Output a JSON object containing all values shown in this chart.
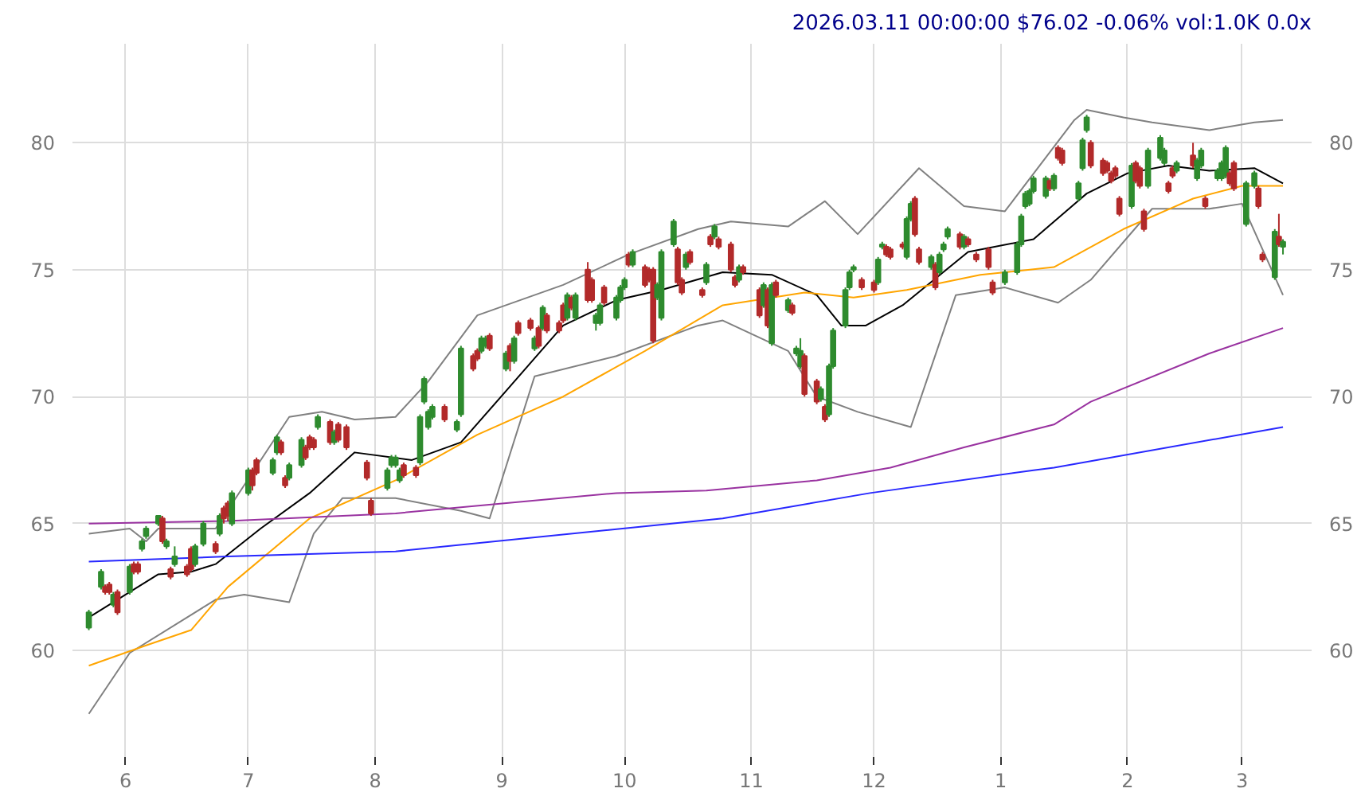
{
  "chart_data": {
    "type": "candlestick",
    "title": "2026.03.11 00:00:00 $76.02 -0.06% vol:1.0K 0.0x",
    "colors": [
      "#2e8b2e",
      "#2e8b2e",
      "#b22a2a",
      "#b22a2a",
      "#2e8b2e",
      "#b22a2a",
      "#2e8b2e",
      "#b22a2a",
      "#b22a2a",
      "#2e8b2e",
      "#2e8b2e",
      "#2e8b2e",
      "#b22a2a",
      "#2e8b2e",
      "#b22a2a",
      "#2e8b2e",
      "#b22a2a",
      "#b22a2a",
      "#2e8b2e",
      "#2e8b2e",
      "#b22a2a",
      "#2e8b2e",
      "#b22a2a",
      "#b22a2a",
      "#2e8b2e",
      "#2e8b2e",
      "#b22a2a",
      "#b22a2a",
      "#2e8b2e",
      "#2e8b2e",
      "#b22a2a",
      "#b22a2a",
      "#2e8b2e",
      "#2e8b2e",
      "#b22a2a",
      "#b22a2a",
      "#b22a2a",
      "#2e8b2e",
      "#b22a2a",
      "#2e8b2e",
      "#b22a2a",
      "#b22a2a",
      "#b22a2a",
      "#b22a2a",
      "#2e8b2e",
      "#2e8b2e",
      "#2e8b2e",
      "#2e8b2e",
      "#b22a2a",
      "#b22a2a",
      "#2e8b2e",
      "#2e8b2e",
      "#2e8b2e",
      "#2e8b2e",
      "#b22a2a",
      "#2e8b2e",
      "#2e8b2e",
      "#b22a2a",
      "#b22a2a",
      "#2e8b2e",
      "#2e8b2e",
      "#b22a2a",
      "#2e8b2e",
      "#b22a2a",
      "#2e8b2e",
      "#b22a2a",
      "#b22a2a",
      "#2e8b2e",
      "#b22a2a",
      "#2e8b2e",
      "#b22a2a",
      "#b22a2a",
      "#b22a2a",
      "#2e8b2e",
      "#b22a2a",
      "#2e8b2e",
      "#b22a2a",
      "#b22a2a",
      "#2e8b2e",
      "#2e8b2e",
      "#b22a2a",
      "#2e8b2e",
      "#2e8b2e",
      "#2e8b2e",
      "#b22a2a",
      "#2e8b2e",
      "#b22a2a",
      "#b22a2a",
      "#b22a2a",
      "#2e8b2e",
      "#2e8b2e",
      "#2e8b2e",
      "#b22a2a",
      "#b22a2a",
      "#2e8b2e",
      "#b22a2a",
      "#b22a2a",
      "#2e8b2e",
      "#b22a2a",
      "#2e8b2e",
      "#b22a2a",
      "#b22a2a",
      "#b22a2a",
      "#2e8b2e",
      "#b22a2a",
      "#b22a2a",
      "#2e8b2e",
      "#b22a2a",
      "#2e8b2e",
      "#b22a2a",
      "#2e8b2e",
      "#b22a2a",
      "#2e8b2e",
      "#2e8b2e",
      "#b22a2a",
      "#b22a2a",
      "#2e8b2e",
      "#b22a2a",
      "#2e8b2e",
      "#2e8b2e",
      "#2e8b2e",
      "#2e8b2e",
      "#2e8b2e",
      "#b22a2a",
      "#b22a2a",
      "#2e8b2e",
      "#2e8b2e",
      "#b22a2a",
      "#b22a2a",
      "#b22a2a",
      "#2e8b2e",
      "#2e8b2e",
      "#b22a2a",
      "#b22a2a",
      "#2e8b2e",
      "#b22a2a",
      "#2e8b2e",
      "#2e8b2e",
      "#2e8b2e",
      "#b22a2a",
      "#2e8b2e",
      "#b22a2a",
      "#b22a2a",
      "#b22a2a",
      "#b22a2a",
      "#2e8b2e",
      "#2e8b2e",
      "#2e8b2e",
      "#2e8b2e",
      "#2e8b2e",
      "#2e8b2e",
      "#2e8b2e",
      "#b22a2a",
      "#2e8b2e",
      "#b22a2a",
      "#b22a2a",
      "#2e8b2e",
      "#2e8b2e",
      "#2e8b2e",
      "#b22a2a",
      "#b22a2a",
      "#b22a2a",
      "#b22a2a",
      "#b22a2a",
      "#b22a2a",
      "#2e8b2e",
      "#b22a2a",
      "#b22a2a",
      "#b22a2a",
      "#2e8b2e",
      "#2e8b2e",
      "#2e8b2e",
      "#b22a2a",
      "#b22a2a",
      "#2e8b2e",
      "#b22a2a",
      "#2e8b2e",
      "#2e8b2e",
      "#b22a2a",
      "#2e8b2e",
      "#2e8b2e",
      "#2e8b2e",
      "#b22a2a",
      "#b22a2a",
      "#2e8b2e",
      "#2e8b2e",
      "#b22a2a",
      "#b22a2a",
      "#2e8b2e",
      "#b22a2a",
      "#2e8b2e"
    ],
    "x": [
      "2025-05-23",
      "2025-05-26",
      "2025-05-27",
      "2025-05-28",
      "2025-05-29",
      "2025-05-30",
      "2025-06-02",
      "2025-06-03",
      "2025-06-04",
      "2025-06-05",
      "2025-06-06",
      "2025-06-09",
      "2025-06-10",
      "2025-06-11",
      "2025-06-12",
      "2025-06-13",
      "2025-06-16",
      "2025-06-17",
      "2025-06-18",
      "2025-06-20",
      "2025-06-23",
      "2025-06-24",
      "2025-06-25",
      "2025-06-26",
      "2025-06-27",
      "2025-07-01",
      "2025-07-02",
      "2025-07-03",
      "2025-07-07",
      "2025-07-08",
      "2025-07-09",
      "2025-07-10",
      "2025-07-11",
      "2025-07-14",
      "2025-07-15",
      "2025-07-16",
      "2025-07-17",
      "2025-07-18",
      "2025-07-21",
      "2025-07-22",
      "2025-07-23",
      "2025-07-25",
      "2025-07-30",
      "2025-07-31",
      "2025-08-04",
      "2025-08-05",
      "2025-08-06",
      "2025-08-07",
      "2025-08-08",
      "2025-08-11",
      "2025-08-12",
      "2025-08-13",
      "2025-08-14",
      "2025-08-15",
      "2025-08-18",
      "2025-08-21",
      "2025-08-22",
      "2025-08-25",
      "2025-08-26",
      "2025-08-27",
      "2025-08-28",
      "2025-08-29",
      "2025-09-02",
      "2025-09-03",
      "2025-09-04",
      "2025-09-05",
      "2025-09-08",
      "2025-09-09",
      "2025-09-10",
      "2025-09-11",
      "2025-09-12",
      "2025-09-15",
      "2025-09-16",
      "2025-09-17",
      "2025-09-18",
      "2025-09-19",
      "2025-09-22",
      "2025-09-23",
      "2025-09-24",
      "2025-09-25",
      "2025-09-26",
      "2025-09-29",
      "2025-09-30",
      "2025-10-01",
      "2025-10-02",
      "2025-10-03",
      "2025-10-06",
      "2025-10-07",
      "2025-10-08",
      "2025-10-09",
      "2025-10-10",
      "2025-10-13",
      "2025-10-14",
      "2025-10-15",
      "2025-10-16",
      "2025-10-17",
      "2025-10-20",
      "2025-10-21",
      "2025-10-22",
      "2025-10-23",
      "2025-10-24",
      "2025-10-27",
      "2025-10-28",
      "2025-10-29",
      "2025-10-30",
      "2025-11-03",
      "2025-11-04",
      "2025-11-05",
      "2025-11-06",
      "2025-11-07",
      "2025-11-10",
      "2025-11-11",
      "2025-11-12",
      "2025-11-13",
      "2025-11-14",
      "2025-11-17",
      "2025-11-18",
      "2025-11-19",
      "2025-11-20",
      "2025-11-21",
      "2025-11-24",
      "2025-11-25",
      "2025-11-26",
      "2025-11-28",
      "2025-12-01",
      "2025-12-02",
      "2025-12-03",
      "2025-12-04",
      "2025-12-05",
      "2025-12-08",
      "2025-12-09",
      "2025-12-10",
      "2025-12-11",
      "2025-12-12",
      "2025-12-15",
      "2025-12-16",
      "2025-12-17",
      "2025-12-18",
      "2025-12-19",
      "2025-12-22",
      "2025-12-23",
      "2025-12-24",
      "2025-12-26",
      "2025-12-29",
      "2025-12-30",
      "2026-01-02",
      "2026-01-05",
      "2026-01-06",
      "2026-01-07",
      "2026-01-08",
      "2026-01-09",
      "2026-01-12",
      "2026-01-13",
      "2026-01-14",
      "2026-01-15",
      "2026-01-16",
      "2026-01-20",
      "2026-01-21",
      "2026-01-22",
      "2026-01-23",
      "2026-01-26",
      "2026-01-27",
      "2026-01-28",
      "2026-01-29",
      "2026-01-30",
      "2026-02-02",
      "2026-02-03",
      "2026-02-04",
      "2026-02-05",
      "2026-02-06",
      "2026-02-09",
      "2026-02-10",
      "2026-02-11",
      "2026-02-12",
      "2026-02-13",
      "2026-02-17",
      "2026-02-18",
      "2026-02-19",
      "2026-02-20",
      "2026-02-23",
      "2026-02-24",
      "2026-02-25",
      "2026-02-26",
      "2026-02-27",
      "2026-03-02",
      "2026-03-04",
      "2026-03-05",
      "2026-03-06",
      "2026-03-09",
      "2026-03-10",
      "2026-03-11"
    ],
    "ohlc": [
      [
        60.9,
        61.6,
        60.8,
        61.5
      ],
      [
        62.5,
        63.2,
        62.4,
        63.1
      ],
      [
        62.5,
        62.6,
        62.2,
        62.3
      ],
      [
        62.6,
        62.7,
        62.2,
        62.3
      ],
      [
        61.8,
        62.3,
        61.7,
        62.2
      ],
      [
        62.3,
        62.4,
        61.4,
        61.5
      ],
      [
        62.3,
        63.4,
        62.2,
        63.3
      ],
      [
        63.4,
        63.5,
        63.0,
        63.1
      ],
      [
        63.4,
        63.5,
        63.0,
        63.1
      ],
      [
        64.0,
        64.4,
        63.9,
        64.3
      ],
      [
        64.5,
        64.9,
        64.4,
        64.8
      ],
      [
        65.0,
        65.3,
        64.9,
        65.3
      ],
      [
        65.2,
        65.3,
        64.2,
        64.3
      ],
      [
        64.1,
        64.4,
        64.0,
        64.3
      ],
      [
        63.2,
        63.3,
        62.8,
        62.9
      ],
      [
        63.4,
        64.1,
        63.3,
        63.7
      ],
      [
        63.3,
        63.4,
        62.9,
        63.0
      ],
      [
        64.0,
        64.1,
        63.1,
        63.2
      ],
      [
        63.4,
        64.2,
        63.3,
        64.1
      ],
      [
        64.2,
        65.1,
        64.1,
        65.0
      ],
      [
        64.2,
        64.3,
        63.8,
        63.9
      ],
      [
        64.6,
        65.4,
        64.5,
        65.3
      ],
      [
        65.6,
        65.7,
        65.0,
        65.2
      ],
      [
        65.8,
        65.9,
        65.1,
        65.3
      ],
      [
        65.0,
        66.3,
        64.9,
        66.2
      ],
      [
        66.2,
        67.2,
        66.1,
        67.1
      ],
      [
        67.1,
        67.2,
        66.3,
        66.5
      ],
      [
        67.5,
        67.6,
        66.9,
        67.0
      ],
      [
        67.0,
        67.6,
        66.9,
        67.5
      ],
      [
        67.8,
        68.5,
        67.7,
        68.4
      ],
      [
        68.2,
        68.3,
        67.7,
        67.8
      ],
      [
        66.8,
        66.9,
        66.4,
        66.5
      ],
      [
        66.8,
        67.4,
        66.7,
        67.3
      ],
      [
        67.3,
        68.4,
        67.2,
        68.3
      ],
      [
        68.0,
        68.1,
        67.5,
        67.6
      ],
      [
        68.4,
        68.5,
        67.9,
        68.0
      ],
      [
        68.3,
        68.4,
        67.9,
        68.0
      ],
      [
        68.8,
        69.3,
        68.7,
        69.2
      ],
      [
        69.0,
        69.1,
        68.1,
        68.2
      ],
      [
        68.2,
        68.7,
        68.1,
        68.6
      ],
      [
        68.9,
        69.0,
        68.2,
        68.3
      ],
      [
        68.8,
        68.9,
        67.9,
        68.0
      ],
      [
        67.4,
        67.5,
        66.7,
        66.8
      ],
      [
        65.9,
        66.0,
        65.3,
        65.4
      ],
      [
        66.4,
        67.2,
        66.3,
        67.1
      ],
      [
        67.3,
        67.7,
        67.2,
        67.6
      ],
      [
        67.3,
        67.7,
        67.2,
        67.6
      ],
      [
        66.7,
        67.2,
        66.6,
        67.1
      ],
      [
        67.3,
        67.4,
        66.8,
        66.9
      ],
      [
        67.2,
        67.3,
        66.8,
        66.9
      ],
      [
        67.4,
        69.3,
        67.3,
        69.2
      ],
      [
        69.8,
        70.8,
        69.7,
        70.7
      ],
      [
        68.8,
        69.5,
        68.7,
        69.4
      ],
      [
        69.2,
        69.7,
        69.1,
        69.6
      ],
      [
        69.6,
        69.7,
        69.0,
        69.1
      ],
      [
        68.7,
        69.1,
        68.6,
        69.0
      ],
      [
        69.3,
        72.0,
        69.2,
        71.9
      ],
      [
        71.6,
        71.7,
        71.0,
        71.1
      ],
      [
        71.8,
        71.9,
        71.4,
        71.5
      ],
      [
        71.8,
        72.4,
        71.7,
        72.3
      ],
      [
        72.0,
        72.4,
        71.9,
        72.3
      ],
      [
        72.4,
        72.5,
        71.8,
        71.9
      ],
      [
        71.1,
        71.8,
        71.0,
        71.7
      ],
      [
        72.0,
        72.1,
        71.0,
        71.4
      ],
      [
        71.4,
        72.4,
        71.3,
        72.3
      ],
      [
        72.9,
        73.0,
        72.4,
        72.5
      ],
      [
        73.0,
        73.1,
        72.6,
        72.7
      ],
      [
        71.9,
        72.4,
        71.8,
        72.3
      ],
      [
        72.7,
        72.8,
        71.9,
        72.0
      ],
      [
        72.7,
        73.6,
        72.6,
        73.5
      ],
      [
        73.2,
        73.3,
        72.5,
        72.6
      ],
      [
        72.9,
        73.0,
        72.5,
        72.6
      ],
      [
        73.6,
        73.7,
        72.9,
        73.0
      ],
      [
        73.1,
        74.1,
        73.0,
        74.0
      ],
      [
        73.9,
        74.0,
        73.4,
        73.5
      ],
      [
        73.1,
        74.1,
        73.0,
        74.0
      ],
      [
        75.0,
        75.3,
        73.7,
        73.8
      ],
      [
        74.6,
        74.7,
        73.7,
        73.8
      ],
      [
        72.9,
        73.3,
        72.6,
        73.2
      ],
      [
        72.9,
        73.7,
        72.8,
        73.6
      ],
      [
        74.3,
        74.4,
        73.6,
        73.7
      ],
      [
        73.1,
        74.0,
        73.0,
        73.9
      ],
      [
        73.8,
        74.4,
        73.7,
        74.3
      ],
      [
        74.3,
        74.7,
        74.2,
        74.6
      ],
      [
        75.6,
        75.7,
        75.1,
        75.2
      ],
      [
        75.2,
        75.8,
        75.1,
        75.7
      ],
      [
        75.1,
        75.2,
        74.3,
        74.4
      ],
      [
        75.0,
        75.1,
        74.5,
        74.6
      ],
      [
        75.0,
        75.1,
        72.1,
        72.2
      ],
      [
        73.9,
        74.5,
        73.8,
        74.4
      ],
      [
        73.1,
        75.8,
        73.0,
        75.7
      ],
      [
        76.0,
        77.0,
        75.9,
        76.9
      ],
      [
        75.8,
        75.9,
        74.4,
        74.5
      ],
      [
        74.6,
        74.7,
        74.0,
        74.1
      ],
      [
        75.1,
        75.7,
        75.0,
        75.6
      ],
      [
        75.7,
        75.8,
        75.2,
        75.3
      ],
      [
        74.2,
        74.3,
        73.9,
        74.0
      ],
      [
        74.5,
        75.3,
        74.4,
        75.2
      ],
      [
        76.3,
        76.4,
        75.9,
        76.0
      ],
      [
        76.3,
        76.8,
        76.2,
        76.7
      ],
      [
        76.2,
        76.3,
        75.8,
        75.9
      ],
      [
        76.0,
        76.1,
        74.9,
        75.0
      ],
      [
        74.7,
        74.8,
        74.3,
        74.4
      ],
      [
        74.6,
        75.2,
        74.5,
        75.1
      ],
      [
        75.1,
        75.2,
        74.8,
        74.9
      ],
      [
        74.2,
        74.3,
        73.1,
        73.2
      ],
      [
        73.6,
        74.5,
        73.5,
        74.4
      ],
      [
        74.2,
        74.3,
        72.7,
        72.8
      ],
      [
        72.1,
        74.5,
        72.0,
        74.4
      ],
      [
        74.5,
        74.6,
        73.9,
        74.0
      ],
      [
        73.4,
        73.9,
        73.3,
        73.8
      ],
      [
        73.6,
        73.7,
        73.2,
        73.3
      ],
      [
        71.7,
        72.0,
        71.6,
        71.9
      ],
      [
        71.2,
        72.3,
        71.1,
        71.8
      ],
      [
        71.6,
        71.7,
        70.0,
        70.1
      ],
      [
        70.6,
        70.7,
        69.7,
        69.8
      ],
      [
        69.9,
        70.4,
        69.8,
        70.3
      ],
      [
        69.6,
        69.7,
        69.0,
        69.1
      ],
      [
        69.3,
        71.3,
        69.2,
        71.2
      ],
      [
        71.2,
        72.7,
        71.1,
        72.6
      ],
      [
        72.8,
        74.3,
        72.7,
        74.2
      ],
      [
        74.3,
        75.0,
        74.2,
        74.9
      ],
      [
        75.0,
        75.2,
        74.9,
        75.1
      ],
      [
        74.6,
        74.7,
        74.2,
        74.3
      ],
      [
        74.5,
        74.6,
        74.1,
        74.2
      ],
      [
        74.5,
        75.5,
        74.4,
        75.4
      ],
      [
        75.9,
        76.1,
        75.8,
        76.0
      ],
      [
        75.9,
        76.0,
        75.5,
        75.6
      ],
      [
        75.8,
        75.9,
        75.4,
        75.5
      ],
      [
        76.0,
        76.1,
        75.8,
        75.9
      ],
      [
        75.5,
        77.1,
        75.4,
        77.0
      ],
      [
        77.0,
        77.7,
        76.9,
        77.6
      ],
      [
        77.8,
        77.9,
        76.3,
        76.4
      ],
      [
        75.8,
        75.9,
        75.2,
        75.3
      ],
      [
        75.1,
        75.6,
        75.0,
        75.5
      ],
      [
        75.2,
        75.3,
        74.2,
        74.3
      ],
      [
        74.9,
        75.7,
        74.8,
        75.6
      ],
      [
        75.8,
        76.1,
        75.7,
        76.0
      ],
      [
        76.3,
        76.7,
        76.2,
        76.6
      ],
      [
        76.4,
        76.5,
        75.8,
        75.9
      ],
      [
        75.9,
        76.4,
        75.8,
        76.3
      ],
      [
        76.2,
        76.3,
        75.9,
        76.0
      ],
      [
        75.6,
        75.7,
        75.3,
        75.4
      ],
      [
        75.8,
        75.9,
        75.0,
        75.1
      ],
      [
        74.5,
        74.6,
        74.0,
        74.1
      ],
      [
        74.5,
        75.0,
        74.4,
        74.9
      ],
      [
        74.9,
        76.1,
        74.8,
        76.0
      ],
      [
        76.0,
        77.2,
        75.9,
        77.1
      ],
      [
        77.5,
        78.1,
        77.4,
        78.0
      ],
      [
        77.6,
        78.2,
        77.5,
        78.1
      ],
      [
        78.1,
        78.7,
        78.0,
        78.6
      ],
      [
        77.9,
        78.7,
        77.8,
        78.6
      ],
      [
        78.5,
        78.6,
        78.1,
        78.2
      ],
      [
        78.2,
        78.8,
        78.1,
        78.7
      ],
      [
        79.8,
        79.9,
        79.3,
        79.4
      ],
      [
        79.7,
        79.8,
        79.1,
        79.2
      ],
      [
        77.8,
        78.5,
        77.7,
        78.4
      ],
      [
        79.0,
        80.2,
        78.9,
        80.1
      ],
      [
        80.5,
        81.1,
        80.4,
        81.0
      ],
      [
        80.0,
        80.1,
        79.0,
        79.1
      ],
      [
        79.3,
        79.4,
        78.7,
        78.8
      ],
      [
        79.2,
        79.3,
        78.8,
        78.9
      ],
      [
        78.8,
        78.9,
        78.4,
        78.5
      ],
      [
        79.0,
        79.1,
        78.6,
        78.7
      ],
      [
        77.8,
        77.9,
        77.1,
        77.2
      ],
      [
        77.5,
        79.2,
        77.4,
        79.1
      ],
      [
        79.2,
        79.3,
        78.4,
        78.5
      ],
      [
        79.0,
        79.1,
        78.2,
        78.3
      ],
      [
        77.3,
        77.4,
        76.5,
        76.6
      ],
      [
        78.3,
        79.8,
        78.2,
        79.7
      ],
      [
        79.4,
        80.3,
        79.3,
        80.2
      ],
      [
        79.2,
        79.8,
        79.1,
        79.7
      ],
      [
        78.4,
        78.5,
        78.0,
        78.1
      ],
      [
        79.0,
        79.1,
        78.6,
        78.7
      ],
      [
        78.9,
        79.3,
        78.8,
        79.2
      ],
      [
        79.5,
        80.0,
        79.0,
        79.1
      ],
      [
        78.6,
        79.4,
        78.5,
        79.3
      ],
      [
        79.1,
        79.8,
        79.0,
        79.7
      ],
      [
        77.8,
        77.9,
        77.4,
        77.5
      ],
      [
        78.6,
        79.0,
        78.5,
        78.9
      ],
      [
        78.6,
        79.3,
        78.5,
        79.2
      ],
      [
        78.7,
        79.9,
        78.6,
        79.8
      ],
      [
        78.8,
        78.9,
        78.3,
        78.4
      ],
      [
        79.2,
        79.3,
        78.1,
        78.2
      ],
      [
        76.8,
        78.5,
        76.7,
        78.4
      ],
      [
        78.3,
        78.9,
        78.2,
        78.8
      ],
      [
        78.2,
        78.3,
        77.4,
        77.5
      ],
      [
        75.6,
        75.7,
        75.3,
        75.4
      ],
      [
        74.7,
        76.6,
        74.6,
        76.5
      ],
      [
        76.3,
        77.2,
        75.9,
        76.0
      ],
      [
        75.9,
        76.2,
        75.6,
        76.1
      ]
    ],
    "series": [
      {
        "type": "line",
        "color": "#000000",
        "x": [
          "2025-05-23",
          "2025-06-09",
          "2025-06-17",
          "2025-06-23",
          "2025-07-04",
          "2025-07-16",
          "2025-07-27",
          "2025-08-10",
          "2025-08-22",
          "2025-09-03",
          "2025-09-16",
          "2025-09-29",
          "2025-10-10",
          "2025-10-25",
          "2025-11-06",
          "2025-11-17",
          "2025-11-23",
          "2025-11-29",
          "2025-12-08",
          "2025-12-24",
          "2026-01-09",
          "2026-01-22",
          "2026-02-01",
          "2026-02-11",
          "2026-02-21",
          "2026-03-04",
          "2026-03-11"
        ],
        "values": [
          61.3,
          63.0,
          63.1,
          63.4,
          64.8,
          66.2,
          67.8,
          67.5,
          68.2,
          70.4,
          72.8,
          73.8,
          74.2,
          74.9,
          74.8,
          74.0,
          72.8,
          72.8,
          73.6,
          75.7,
          76.2,
          78.0,
          78.8,
          79.1,
          78.9,
          79.0,
          78.4
        ]
      },
      {
        "type": "line",
        "color": "#808080",
        "x": [
          "2025-05-23",
          "2025-06-02",
          "2025-06-06",
          "2025-06-09",
          "2025-06-23",
          "2025-07-11",
          "2025-07-19",
          "2025-07-27",
          "2025-08-06",
          "2025-08-14",
          "2025-08-26",
          "2025-09-09",
          "2025-09-16",
          "2025-10-02",
          "2025-10-19",
          "2025-10-27",
          "2025-11-10",
          "2025-11-19",
          "2025-11-27",
          "2025-12-12",
          "2025-12-23",
          "2026-01-02",
          "2026-01-19",
          "2026-01-22",
          "2026-01-31",
          "2026-02-07",
          "2026-02-21",
          "2026-03-04",
          "2026-03-11"
        ],
        "values": [
          64.6,
          64.8,
          64.3,
          64.8,
          64.8,
          69.2,
          69.4,
          69.1,
          69.2,
          70.6,
          73.2,
          74.0,
          74.4,
          75.6,
          76.6,
          76.9,
          76.7,
          77.7,
          76.4,
          79.0,
          77.5,
          77.3,
          80.9,
          81.3,
          81.0,
          80.8,
          80.5,
          80.8,
          80.9
        ]
      },
      {
        "type": "line",
        "color": "#808080",
        "x": [
          "2025-05-23",
          "2025-06-02",
          "2025-06-23",
          "2025-06-30",
          "2025-07-11",
          "2025-07-17",
          "2025-07-24",
          "2025-08-06",
          "2025-08-22",
          "2025-08-29",
          "2025-09-09",
          "2025-09-29",
          "2025-10-19",
          "2025-10-25",
          "2025-11-10",
          "2025-11-17",
          "2025-11-27",
          "2025-12-10",
          "2025-12-21",
          "2026-01-02",
          "2026-01-15",
          "2026-01-23",
          "2026-02-07",
          "2026-02-21",
          "2026-03-01",
          "2026-03-11"
        ],
        "values": [
          57.5,
          59.9,
          62.0,
          62.2,
          61.9,
          64.6,
          66.0,
          66.0,
          65.5,
          65.2,
          70.8,
          71.6,
          72.8,
          73.0,
          71.8,
          70.0,
          69.4,
          68.8,
          74.0,
          74.3,
          73.7,
          74.6,
          77.4,
          77.4,
          77.6,
          74.0
        ]
      },
      {
        "type": "line",
        "color": "#ffa500",
        "x": [
          "2025-05-23",
          "2025-06-06",
          "2025-06-17",
          "2025-06-26",
          "2025-07-16",
          "2025-08-06",
          "2025-08-26",
          "2025-09-16",
          "2025-10-06",
          "2025-10-25",
          "2025-11-14",
          "2025-11-26",
          "2025-12-09",
          "2025-12-27",
          "2026-01-14",
          "2026-01-31",
          "2026-02-17",
          "2026-03-01",
          "2026-03-11"
        ],
        "values": [
          59.4,
          60.2,
          60.8,
          62.5,
          65.2,
          66.7,
          68.5,
          70.0,
          71.8,
          73.6,
          74.1,
          73.9,
          74.2,
          74.8,
          75.1,
          76.6,
          77.8,
          78.3,
          78.3
        ]
      },
      {
        "type": "line",
        "color": "#9932a0",
        "x": [
          "2025-05-23",
          "2025-06-26",
          "2025-08-06",
          "2025-09-29",
          "2025-10-21",
          "2025-11-17",
          "2025-12-05",
          "2025-12-23",
          "2026-01-14",
          "2026-01-23",
          "2026-02-21",
          "2026-03-11"
        ],
        "values": [
          65.0,
          65.1,
          65.4,
          66.2,
          66.3,
          66.7,
          67.2,
          68.0,
          68.9,
          69.8,
          71.7,
          72.7
        ]
      },
      {
        "type": "line",
        "color": "#2828ff",
        "x": [
          "2025-05-23",
          "2025-06-26",
          "2025-08-06",
          "2025-10-25",
          "2025-11-30",
          "2026-01-09",
          "2026-01-14",
          "2026-03-11"
        ],
        "values": [
          63.5,
          63.7,
          63.9,
          65.2,
          66.2,
          67.1,
          67.2,
          68.8
        ]
      }
    ],
    "xlim": [
      "2025-05-19",
      "2026-03-18"
    ],
    "xticks": [
      {
        "value": "2025-06-01",
        "label": "6"
      },
      {
        "value": "2025-07-01",
        "label": "7"
      },
      {
        "value": "2025-08-01",
        "label": "8"
      },
      {
        "value": "2025-09-01",
        "label": "9"
      },
      {
        "value": "2025-10-01",
        "label": "10"
      },
      {
        "value": "2025-11-01",
        "label": "11"
      },
      {
        "value": "2025-12-01",
        "label": "12"
      },
      {
        "value": "2026-01-01",
        "label": "1"
      },
      {
        "value": "2026-02-01",
        "label": "2"
      },
      {
        "value": "2026-03-01",
        "label": "3"
      }
    ],
    "ylim": [
      55.8,
      83.9
    ],
    "yticks": [
      60,
      65,
      70,
      75,
      80
    ],
    "y2lim": [
      55.8,
      83.9
    ],
    "y2ticks": [
      60,
      65,
      70,
      75,
      80
    ],
    "grid": true
  }
}
